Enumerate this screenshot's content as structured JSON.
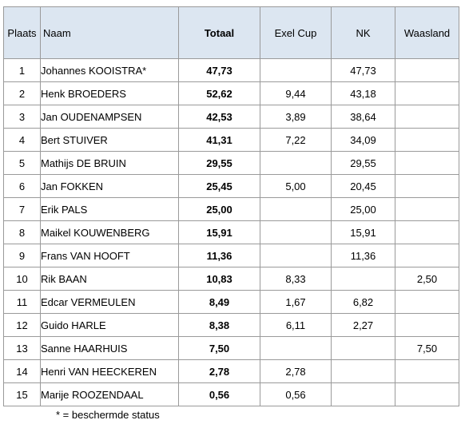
{
  "header": {
    "plaats": "Plaats",
    "naam": "Naam",
    "totaal": "Totaal",
    "exel_cup": "Exel Cup",
    "nk": "NK",
    "waasland": "Waasland"
  },
  "rows": [
    {
      "place": "1",
      "name": "Johannes KOOISTRA*",
      "total": "47,73",
      "exel": "",
      "nk": "47,73",
      "waasland": ""
    },
    {
      "place": "2",
      "name": "Henk BROEDERS",
      "total": "52,62",
      "exel": "9,44",
      "nk": "43,18",
      "waasland": ""
    },
    {
      "place": "3",
      "name": "Jan OUDENAMPSEN",
      "total": "42,53",
      "exel": "3,89",
      "nk": "38,64",
      "waasland": ""
    },
    {
      "place": "4",
      "name": "Bert STUIVER",
      "total": "41,31",
      "exel": "7,22",
      "nk": "34,09",
      "waasland": ""
    },
    {
      "place": "5",
      "name": "Mathijs DE BRUIN",
      "total": "29,55",
      "exel": "",
      "nk": "29,55",
      "waasland": ""
    },
    {
      "place": "6",
      "name": "Jan FOKKEN",
      "total": "25,45",
      "exel": "5,00",
      "nk": "20,45",
      "waasland": ""
    },
    {
      "place": "7",
      "name": "Erik PALS",
      "total": "25,00",
      "exel": "",
      "nk": "25,00",
      "waasland": ""
    },
    {
      "place": "8",
      "name": "Maikel KOUWENBERG",
      "total": "15,91",
      "exel": "",
      "nk": "15,91",
      "waasland": ""
    },
    {
      "place": "9",
      "name": "Frans VAN HOOFT",
      "total": "11,36",
      "exel": "",
      "nk": "11,36",
      "waasland": ""
    },
    {
      "place": "10",
      "name": "Rik BAAN",
      "total": "10,83",
      "exel": "8,33",
      "nk": "",
      "waasland": "2,50"
    },
    {
      "place": "11",
      "name": "Edcar VERMEULEN",
      "total": "8,49",
      "exel": "1,67",
      "nk": "6,82",
      "waasland": ""
    },
    {
      "place": "12",
      "name": "Guido HARLE",
      "total": "8,38",
      "exel": "6,11",
      "nk": "2,27",
      "waasland": ""
    },
    {
      "place": "13",
      "name": "Sanne HAARHUIS",
      "total": "7,50",
      "exel": "",
      "nk": "",
      "waasland": "7,50"
    },
    {
      "place": "14",
      "name": "Henri VAN HEECKEREN",
      "total": "2,78",
      "exel": "2,78",
      "nk": "",
      "waasland": ""
    },
    {
      "place": "15",
      "name": "Marije ROOZENDAAL",
      "total": "0,56",
      "exel": "0,56",
      "nk": "",
      "waasland": ""
    }
  ],
  "footnote": "* = beschermde status",
  "colors": {
    "header_bg": "#dce6f1",
    "border": "#9a9a9a"
  }
}
